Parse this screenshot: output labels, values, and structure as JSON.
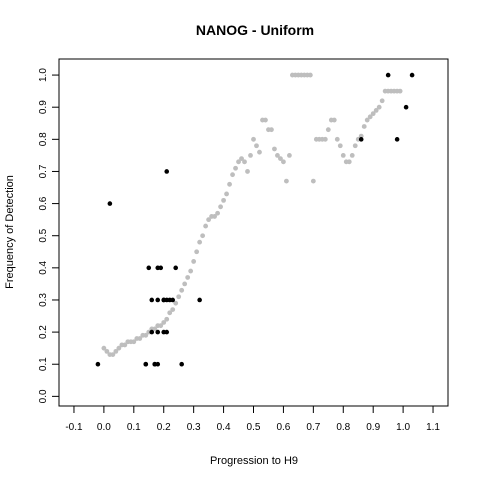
{
  "chart_data": {
    "type": "scatter",
    "title": "NANOG - Uniform",
    "xlabel": "Progression to H9",
    "ylabel": "Frequency of Detection",
    "xlim": [
      -0.15,
      1.15
    ],
    "ylim": [
      -0.03,
      1.05
    ],
    "x_ticks": [
      "-0.1",
      "0.0",
      "0.1",
      "0.2",
      "0.3",
      "0.4",
      "0.5",
      "0.6",
      "0.7",
      "0.8",
      "0.9",
      "1.0",
      "1.1"
    ],
    "y_ticks": [
      "0.0",
      "0.1",
      "0.2",
      "0.3",
      "0.4",
      "0.5",
      "0.6",
      "0.7",
      "0.8",
      "0.9",
      "1.0"
    ],
    "grid": false,
    "legend": "none",
    "series": [
      {
        "color": "#bebebe",
        "marker": "dot",
        "x": [
          0.0,
          0.01,
          0.02,
          0.03,
          0.04,
          0.05,
          0.06,
          0.07,
          0.08,
          0.09,
          0.1,
          0.11,
          0.12,
          0.13,
          0.14,
          0.15,
          0.16,
          0.17,
          0.18,
          0.19,
          0.2,
          0.21,
          0.22,
          0.23,
          0.24,
          0.25,
          0.26,
          0.27,
          0.28,
          0.29,
          0.3,
          0.31,
          0.32,
          0.33,
          0.34,
          0.35,
          0.36,
          0.37,
          0.38,
          0.39,
          0.4,
          0.41,
          0.42,
          0.43,
          0.44,
          0.45,
          0.46,
          0.47,
          0.48,
          0.49,
          0.5,
          0.51,
          0.52,
          0.53,
          0.54,
          0.55,
          0.56,
          0.57,
          0.58,
          0.59,
          0.6,
          0.61,
          0.62,
          0.63,
          0.64,
          0.65,
          0.66,
          0.67,
          0.68,
          0.69,
          0.7,
          0.71,
          0.72,
          0.73,
          0.74,
          0.75,
          0.76,
          0.77,
          0.78,
          0.79,
          0.8,
          0.81,
          0.82,
          0.83,
          0.84,
          0.85,
          0.86,
          0.87,
          0.88,
          0.89,
          0.9,
          0.91,
          0.92,
          0.93,
          0.94,
          0.95,
          0.96,
          0.97,
          0.98,
          0.99
        ],
        "y": [
          0.15,
          0.14,
          0.13,
          0.13,
          0.14,
          0.15,
          0.16,
          0.16,
          0.17,
          0.17,
          0.17,
          0.18,
          0.18,
          0.19,
          0.19,
          0.2,
          0.21,
          0.21,
          0.22,
          0.22,
          0.23,
          0.24,
          0.26,
          0.27,
          0.29,
          0.31,
          0.33,
          0.35,
          0.37,
          0.39,
          0.42,
          0.45,
          0.48,
          0.5,
          0.53,
          0.55,
          0.56,
          0.56,
          0.57,
          0.59,
          0.61,
          0.63,
          0.66,
          0.69,
          0.71,
          0.73,
          0.74,
          0.73,
          0.7,
          0.75,
          0.8,
          0.78,
          0.76,
          0.86,
          0.86,
          0.83,
          0.83,
          0.77,
          0.75,
          0.74,
          0.73,
          0.67,
          0.75,
          1.0,
          1.0,
          1.0,
          1.0,
          1.0,
          1.0,
          1.0,
          0.67,
          0.8,
          0.8,
          0.8,
          0.8,
          0.83,
          0.86,
          0.86,
          0.8,
          0.78,
          0.75,
          0.73,
          0.73,
          0.75,
          0.78,
          0.8,
          0.81,
          0.84,
          0.86,
          0.87,
          0.88,
          0.89,
          0.9,
          0.92,
          0.95,
          0.95,
          0.95,
          0.95,
          0.95,
          0.95
        ]
      },
      {
        "color": "#000000",
        "marker": "dot",
        "x": [
          -0.02,
          0.02,
          0.14,
          0.15,
          0.16,
          0.17,
          0.18,
          0.18,
          0.19,
          0.2,
          0.21,
          0.21,
          0.22,
          0.23,
          0.24,
          0.16,
          0.18,
          0.2,
          0.21,
          0.2,
          0.14,
          0.17,
          0.18,
          0.26,
          0.32,
          0.86,
          0.95,
          0.98,
          1.01,
          1.03
        ],
        "y": [
          0.1,
          0.6,
          0.1,
          0.4,
          0.3,
          0.1,
          0.3,
          0.4,
          0.4,
          0.3,
          0.3,
          0.7,
          0.3,
          0.3,
          0.4,
          0.2,
          0.2,
          0.2,
          0.2,
          0.3,
          0.1,
          0.1,
          0.1,
          0.1,
          0.3,
          0.8,
          1.0,
          0.8,
          0.9,
          1.0
        ]
      }
    ]
  }
}
